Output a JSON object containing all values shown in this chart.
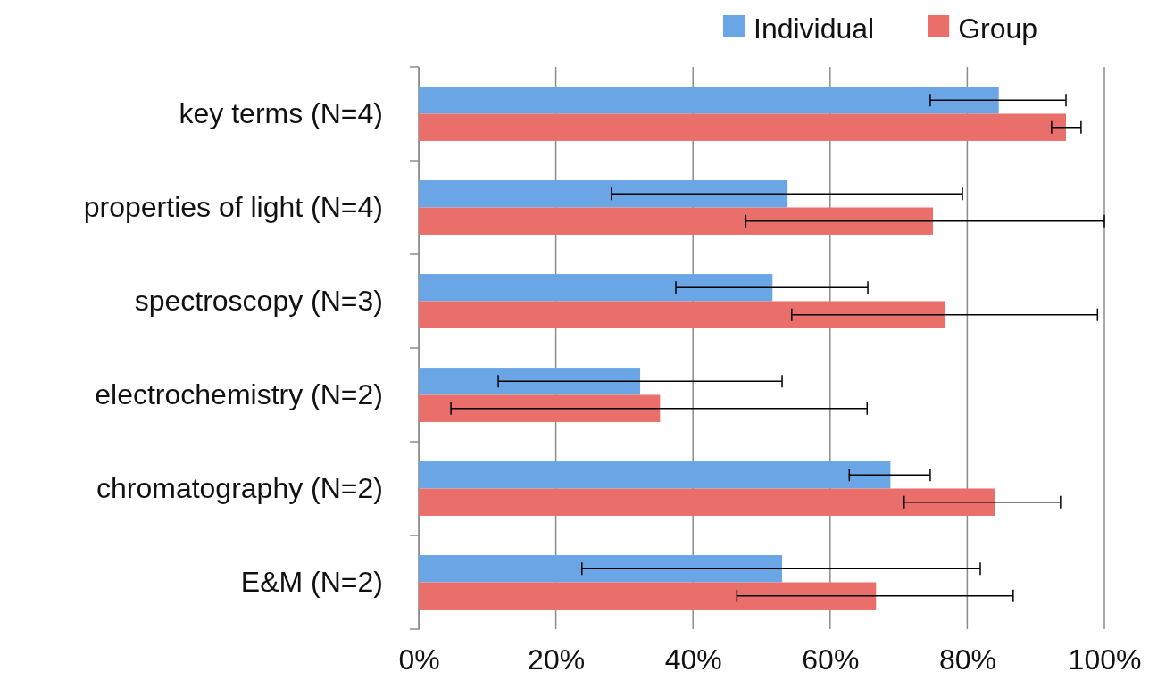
{
  "chart_data": {
    "type": "bar",
    "orientation": "horizontal",
    "categories": [
      "key terms (N=4)",
      "properties of light (N=4)",
      "spectroscopy (N=3)",
      "electrochemistry (N=2)",
      "chromatography (N=2)",
      "E&M (N=2)"
    ],
    "series": [
      {
        "name": "Individual",
        "color": "#6aa6e6",
        "values": [
          84.6,
          53.8,
          51.6,
          32.3,
          68.8,
          53.0
        ],
        "errors": [
          [
            74.6,
            94.4
          ],
          [
            28.1,
            79.3
          ],
          [
            37.5,
            65.5
          ],
          [
            11.6,
            53.0
          ],
          [
            62.8,
            74.6
          ],
          [
            23.8,
            81.9
          ]
        ]
      },
      {
        "name": "Group",
        "color": "#ea6f6a",
        "values": [
          94.4,
          75.0,
          76.8,
          35.2,
          84.1,
          66.7
        ],
        "errors": [
          [
            92.3,
            96.6
          ],
          [
            47.7,
            100
          ],
          [
            54.4,
            99.0
          ],
          [
            4.7,
            65.4
          ],
          [
            70.8,
            93.6
          ],
          [
            46.4,
            86.7
          ]
        ]
      }
    ],
    "xlim": [
      0,
      100
    ],
    "xticks": [
      {
        "value": 0,
        "label": "0%"
      },
      {
        "value": 20,
        "label": "20%"
      },
      {
        "value": 40,
        "label": "40%"
      },
      {
        "value": 60,
        "label": "60%"
      },
      {
        "value": 80,
        "label": "80%"
      },
      {
        "value": 100,
        "label": "100%"
      }
    ],
    "grid": "x",
    "legend": "top right"
  }
}
